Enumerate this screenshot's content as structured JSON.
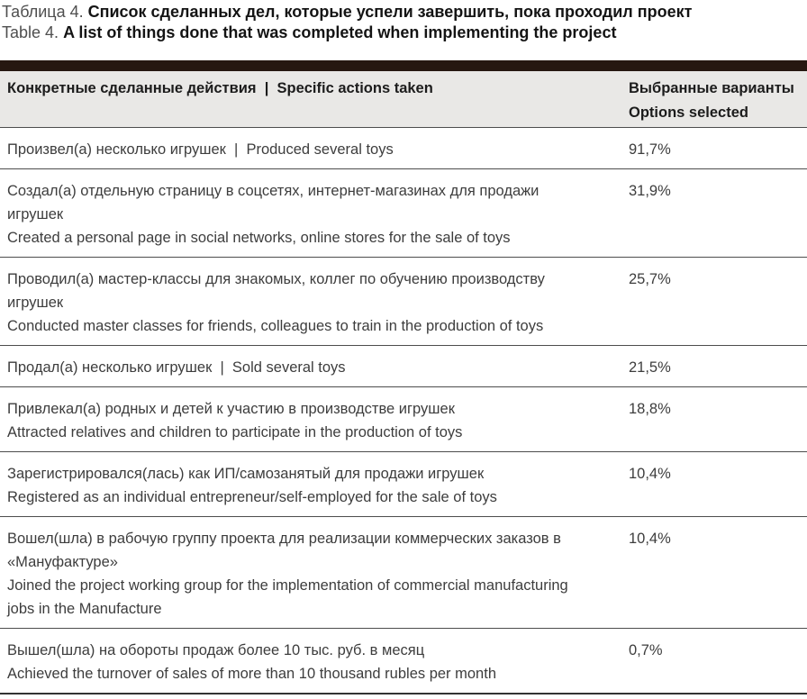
{
  "caption": {
    "ru_label": "Таблица 4.",
    "ru_title": "Список сделанных дел, которые успели завершить, пока проходил проект",
    "en_label": "Table 4.",
    "en_title": "A list of things done that was completed when implementing the project"
  },
  "table": {
    "header": {
      "col1": "Конкретные сделанные действия  |  Specific actions taken",
      "col2_line1": "Выбранные варианты",
      "col2_line2": "Options selected"
    },
    "rows": [
      {
        "ru": "Произвел(а) несколько игрушек  |  Produced several toys",
        "en": "",
        "value": "91,7%"
      },
      {
        "ru": "Создал(а) отдельную страницу в соцсетях, интернет-магазинах для продажи\nигрушек",
        "en": "Created a personal page in social networks, online stores for the sale of toys",
        "value": "31,9%"
      },
      {
        "ru": "Проводил(а) мастер-классы для знакомых, коллег по обучению производству\nигрушек",
        "en": "Conducted master classes for friends, colleagues to train in the production of toys",
        "value": "25,7%"
      },
      {
        "ru": "Продал(а) несколько игрушек  |  Sold several toys",
        "en": "",
        "value": "21,5%"
      },
      {
        "ru": "Привлекал(а) родных и детей к участию в производстве игрушек",
        "en": "Attracted relatives and children to participate in the production of toys",
        "value": "18,8%"
      },
      {
        "ru": "Зарегистрировался(лась) как ИП/самозанятый для продажи игрушек",
        "en": "Registered as an individual entrepreneur/self-employed for the sale of toys",
        "value": "10,4%"
      },
      {
        "ru": "Вошел(шла) в рабочую группу проекта для реализации коммерческих заказов в\n«Мануфактуре»",
        "en": "Joined the project working group for the implementation of commercial manufacturing\njobs in the Manufacture",
        "value": "10,4%"
      },
      {
        "ru": "Вышел(шла) на обороты продаж более 10 тыс. руб. в месяц",
        "en": "Achieved the turnover of sales of more than 10 thousand rubles per month",
        "value": "0,7%"
      }
    ]
  },
  "colors": {
    "top_bar": "#261710",
    "header_background": "#e9e8e6",
    "row_divider": "#4d4d4d",
    "bottom_border": "#333333",
    "body_text": "#3d3d3d",
    "caption_label": "#4f4f4f",
    "caption_title": "#141414"
  }
}
